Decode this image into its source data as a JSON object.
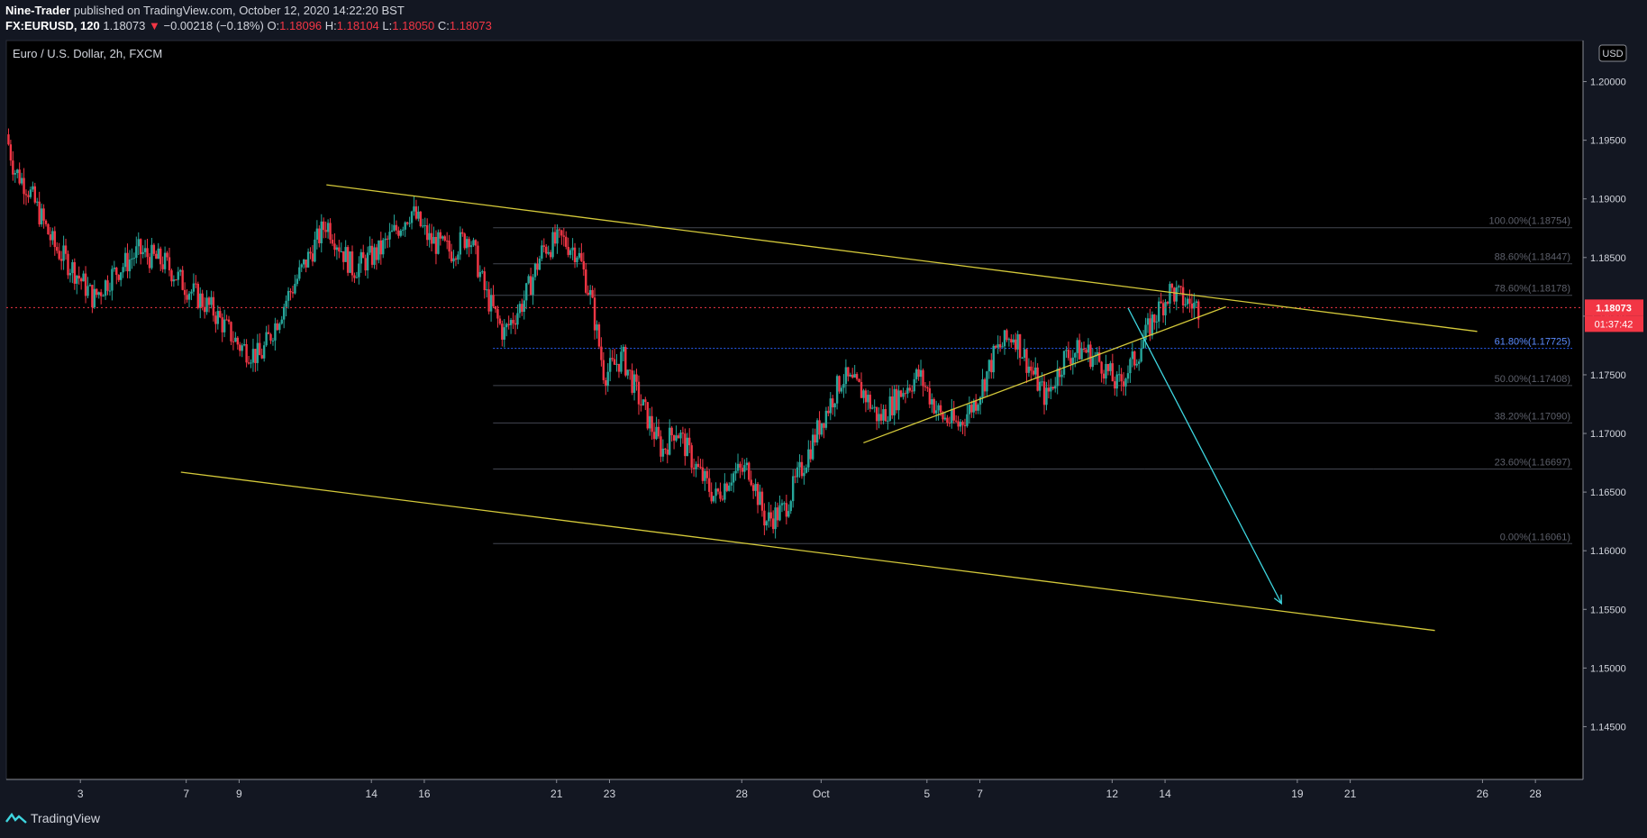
{
  "header": {
    "author": "Nine-Trader",
    "published_text": "published on TradingView.com, October 12, 2020 14:22:20 BST",
    "symbol": "FX:EURUSD, 120",
    "last": "1.18073",
    "arrow": "▼",
    "change": "−0.00218 (−0.18%)",
    "o_label": "O:",
    "o": "1.18096",
    "h_label": "H:",
    "h": "1.18104",
    "l_label": "L:",
    "l": "1.18050",
    "c_label": "C:",
    "c": "1.18073"
  },
  "footer": {
    "brand": "TradingView"
  },
  "colors": {
    "up": "#26a69a",
    "down": "#f23645",
    "trend": "#d4c93a",
    "arrow": "#3ed6e0",
    "fib": "#434651",
    "fib618": "#2962ff",
    "price_badge": "#f23645"
  },
  "chart_data": {
    "type": "candlestick",
    "title": "Euro / U.S. Dollar, 2h, FXCM",
    "currency_label": "USD",
    "ylim": [
      1.1405,
      1.2035
    ],
    "y_ticks": [
      "1.20000",
      "1.19500",
      "1.19000",
      "1.18500",
      "1.18000",
      "1.17500",
      "1.17000",
      "1.16500",
      "1.16000",
      "1.15500",
      "1.15000",
      "1.14500"
    ],
    "y_tick_values": [
      1.2,
      1.195,
      1.19,
      1.185,
      1.18,
      1.175,
      1.17,
      1.165,
      1.16,
      1.155,
      1.15,
      1.145
    ],
    "x_ticks": [
      "3",
      "7",
      "9",
      "14",
      "16",
      "21",
      "23",
      "28",
      "Oct",
      "5",
      "7",
      "12",
      "14",
      "19",
      "21",
      "26",
      "28"
    ],
    "x_tick_days": [
      3,
      7,
      9,
      14,
      16,
      21,
      23,
      28,
      31,
      35,
      37,
      42,
      44,
      49,
      51,
      56,
      58
    ],
    "x_range_days": [
      0.2,
      59.8
    ],
    "last_price": "1.18073",
    "countdown": "01:37:42",
    "last_price_value": 1.18073,
    "close_path": [
      {
        "day": 0.2,
        "close": 1.1955
      },
      {
        "day": 0.5,
        "close": 1.1925
      },
      {
        "day": 1.0,
        "close": 1.191
      },
      {
        "day": 1.5,
        "close": 1.1885
      },
      {
        "day": 2.0,
        "close": 1.186
      },
      {
        "day": 2.8,
        "close": 1.1838
      },
      {
        "day": 3.5,
        "close": 1.1815
      },
      {
        "day": 4.2,
        "close": 1.1835
      },
      {
        "day": 5.2,
        "close": 1.1855
      },
      {
        "day": 6.2,
        "close": 1.1845
      },
      {
        "day": 7.0,
        "close": 1.1825
      },
      {
        "day": 8.0,
        "close": 1.1805
      },
      {
        "day": 9.0,
        "close": 1.1775
      },
      {
        "day": 9.8,
        "close": 1.1765
      },
      {
        "day": 10.8,
        "close": 1.1815
      },
      {
        "day": 11.5,
        "close": 1.1845
      },
      {
        "day": 12.3,
        "close": 1.188
      },
      {
        "day": 13.3,
        "close": 1.184
      },
      {
        "day": 14.3,
        "close": 1.1855
      },
      {
        "day": 15.5,
        "close": 1.189
      },
      {
        "day": 16.2,
        "close": 1.1865
      },
      {
        "day": 17.0,
        "close": 1.1855
      },
      {
        "day": 17.7,
        "close": 1.187
      },
      {
        "day": 18.3,
        "close": 1.182
      },
      {
        "day": 19.0,
        "close": 1.1785
      },
      {
        "day": 19.8,
        "close": 1.1815
      },
      {
        "day": 20.5,
        "close": 1.1858
      },
      {
        "day": 21.2,
        "close": 1.1865
      },
      {
        "day": 21.8,
        "close": 1.1855
      },
      {
        "day": 22.3,
        "close": 1.1815
      },
      {
        "day": 22.8,
        "close": 1.175
      },
      {
        "day": 23.5,
        "close": 1.1765
      },
      {
        "day": 24.2,
        "close": 1.1725
      },
      {
        "day": 25.0,
        "close": 1.1685
      },
      {
        "day": 25.5,
        "close": 1.1705
      },
      {
        "day": 26.3,
        "close": 1.167
      },
      {
        "day": 27.0,
        "close": 1.1645
      },
      {
        "day": 27.6,
        "close": 1.1665
      },
      {
        "day": 28.3,
        "close": 1.167
      },
      {
        "day": 28.9,
        "close": 1.1625
      },
      {
        "day": 29.6,
        "close": 1.1635
      },
      {
        "day": 30.3,
        "close": 1.1672
      },
      {
        "day": 31.0,
        "close": 1.171
      },
      {
        "day": 31.8,
        "close": 1.1748
      },
      {
        "day": 32.6,
        "close": 1.1735
      },
      {
        "day": 33.2,
        "close": 1.1712
      },
      {
        "day": 34.0,
        "close": 1.1735
      },
      {
        "day": 34.7,
        "close": 1.175
      },
      {
        "day": 35.5,
        "close": 1.1715
      },
      {
        "day": 36.2,
        "close": 1.1707
      },
      {
        "day": 36.9,
        "close": 1.173
      },
      {
        "day": 37.6,
        "close": 1.177
      },
      {
        "day": 38.3,
        "close": 1.1785
      },
      {
        "day": 38.9,
        "close": 1.1755
      },
      {
        "day": 39.5,
        "close": 1.173
      },
      {
        "day": 40.2,
        "close": 1.1765
      },
      {
        "day": 40.9,
        "close": 1.1772
      },
      {
        "day": 41.6,
        "close": 1.176
      },
      {
        "day": 42.2,
        "close": 1.174
      },
      {
        "day": 42.9,
        "close": 1.1765
      },
      {
        "day": 43.5,
        "close": 1.1795
      },
      {
        "day": 44.2,
        "close": 1.1822
      },
      {
        "day": 44.8,
        "close": 1.1812
      },
      {
        "day": 45.3,
        "close": 1.1807
      }
    ],
    "trendlines": [
      {
        "name": "channel-upper",
        "start": {
          "day": 12.3,
          "price": 1.1912
        },
        "end": {
          "day": 55.8,
          "price": 1.1787
        }
      },
      {
        "name": "channel-lower",
        "start": {
          "day": 6.8,
          "price": 1.1667
        },
        "end": {
          "day": 54.2,
          "price": 1.1532
        }
      },
      {
        "name": "rising-support",
        "start": {
          "day": 32.6,
          "price": 1.1692
        },
        "end": {
          "day": 46.3,
          "price": 1.1808
        }
      }
    ],
    "projection_arrow": {
      "start": {
        "day": 42.6,
        "price": 1.1807
      },
      "end": {
        "day": 48.4,
        "price": 1.1555
      }
    },
    "fibonacci": [
      {
        "label": "100.00%(1.18754)",
        "value": 1.18754
      },
      {
        "label": "88.60%(1.18447)",
        "value": 1.18447
      },
      {
        "label": "78.60%(1.18178)",
        "value": 1.18178
      },
      {
        "label": "61.80%(1.17725)",
        "value": 1.17725
      },
      {
        "label": "50.00%(1.17408)",
        "value": 1.17408
      },
      {
        "label": "38.20%(1.17090)",
        "value": 1.1709
      },
      {
        "label": "23.60%(1.16697)",
        "value": 1.16697
      },
      {
        "label": "0.00%(1.16061)",
        "value": 1.16061
      }
    ],
    "fib_start_day": 18.6
  }
}
